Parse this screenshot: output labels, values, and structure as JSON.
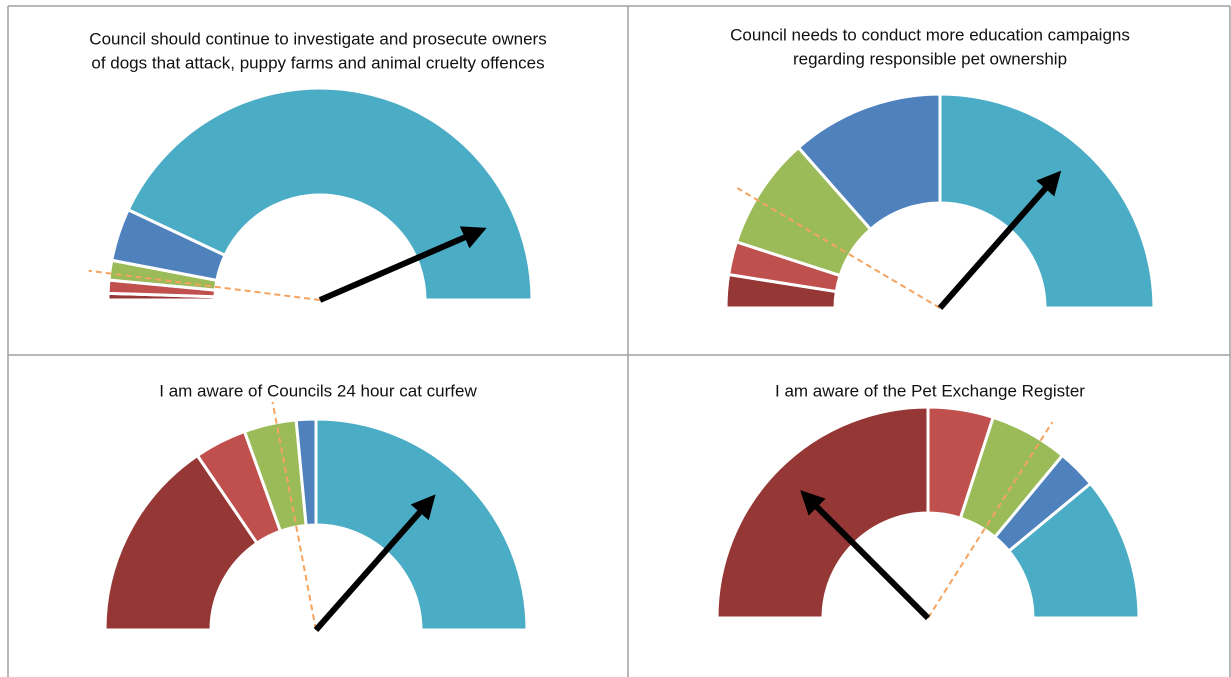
{
  "chart_data": [
    {
      "type": "gauge",
      "title": [
        "Council should continue to investigate and prosecute owners",
        "of dogs that attack, puppy farms and animal cruelty offences"
      ],
      "values": [
        1,
        2,
        3,
        8,
        86
      ],
      "colors": [
        "#953735",
        "#c0504d",
        "#9bbb59",
        "#4f81bd",
        "#4bacc6"
      ],
      "needle": 87,
      "reference": 4
    },
    {
      "type": "gauge",
      "title": [
        "Council needs to conduct more education campaigns",
        "regarding responsible pet ownership"
      ],
      "values": [
        5,
        5,
        17,
        23,
        50
      ],
      "colors": [
        "#953735",
        "#c0504d",
        "#9bbb59",
        "#4f81bd",
        "#4bacc6"
      ],
      "needle": 73,
      "reference": 17
    },
    {
      "type": "gauge",
      "title": [
        "I am aware of Councils 24 hour cat curfew"
      ],
      "values": [
        31,
        8,
        8,
        3,
        50
      ],
      "colors": [
        "#953735",
        "#c0504d",
        "#9bbb59",
        "#4f81bd",
        "#4bacc6"
      ],
      "needle": 73,
      "reference": 44
    },
    {
      "type": "gauge",
      "title": [
        "I am aware of the Pet Exchange Register"
      ],
      "values": [
        50,
        10,
        12,
        6,
        22
      ],
      "colors": [
        "#953735",
        "#c0504d",
        "#9bbb59",
        "#4f81bd",
        "#4bacc6"
      ],
      "needle": 25,
      "reference": 68
    }
  ]
}
